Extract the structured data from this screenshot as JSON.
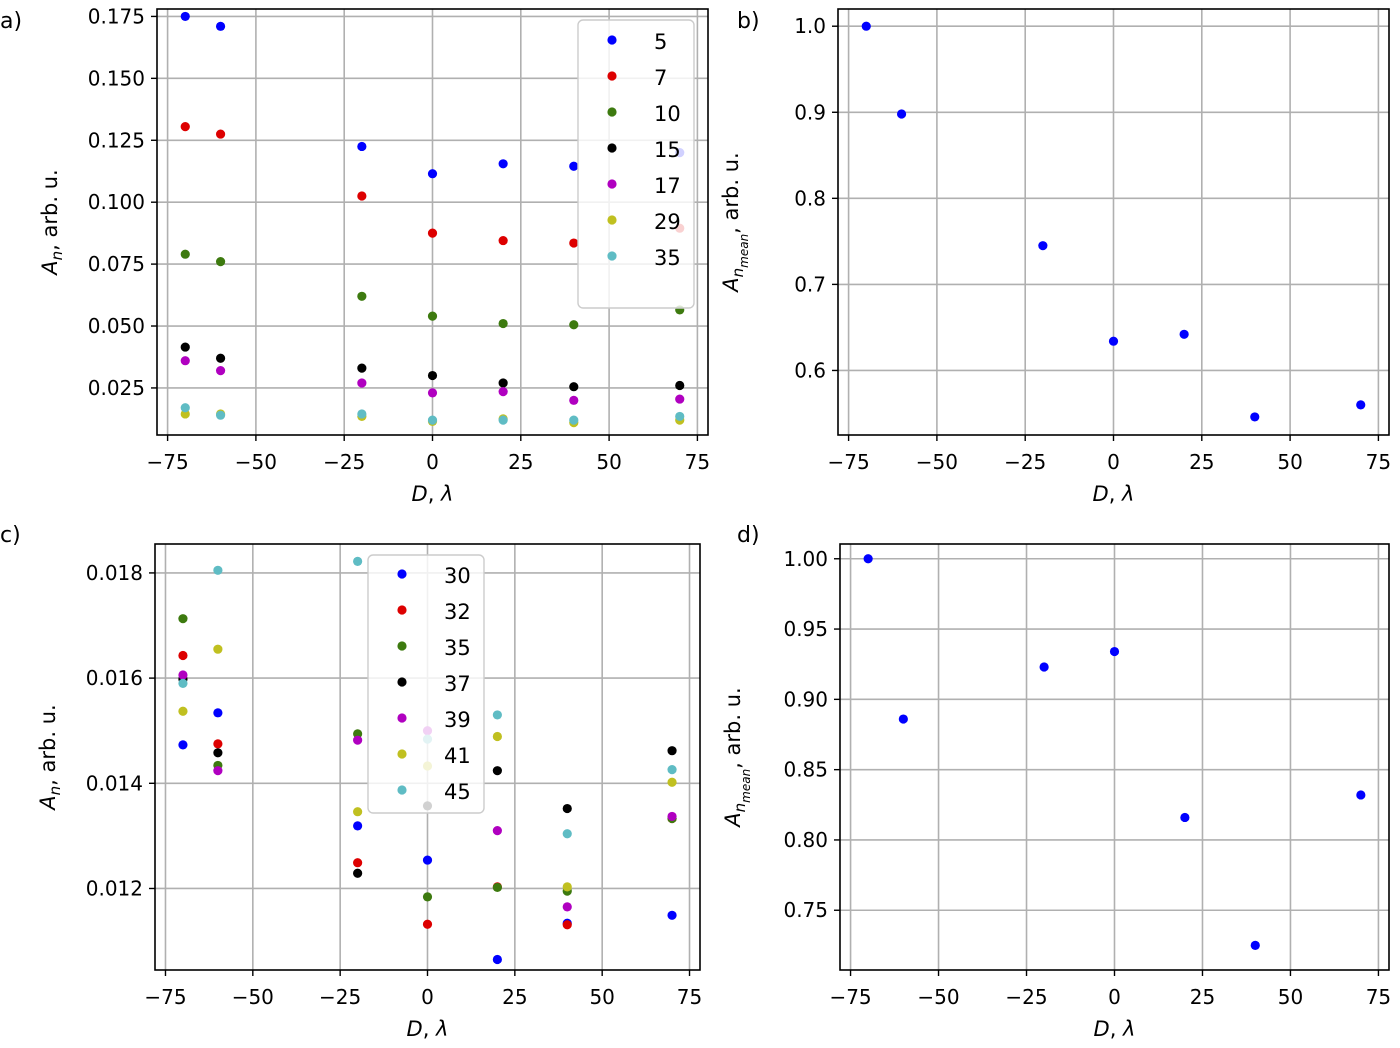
{
  "chart_data": [
    {
      "panel_label": "a)",
      "type": "scatter",
      "xlabel": "D, λ",
      "ylabel": "An, arb. u.",
      "ylabel_main": "A",
      "ylabel_sub": "n",
      "ylabel_rest": ", arb. u.",
      "xlim": [
        -78,
        78
      ],
      "ylim": [
        0.006,
        0.178
      ],
      "xticks": [
        -75,
        -50,
        -25,
        0,
        25,
        50,
        75
      ],
      "xtick_labels": [
        "−75",
        "−50",
        "−25",
        "0",
        "25",
        "50",
        "75"
      ],
      "yticks": [
        0.025,
        0.05,
        0.075,
        0.1,
        0.125,
        0.15,
        0.175
      ],
      "ytick_labels": [
        "0.025",
        "0.050",
        "0.075",
        "0.100",
        "0.125",
        "0.150",
        "0.175"
      ],
      "grid": true,
      "legend_position": "top-right",
      "x": [
        -70,
        -60,
        -20,
        0,
        20,
        40,
        70
      ],
      "series": [
        {
          "name": "5",
          "color": "#0000ff",
          "values": [
            0.175,
            0.171,
            0.1225,
            0.1115,
            0.1155,
            0.1145,
            0.12
          ]
        },
        {
          "name": "7",
          "color": "#dd0000",
          "values": [
            0.1305,
            0.1275,
            0.1025,
            0.0875,
            0.0845,
            0.0835,
            0.0895
          ]
        },
        {
          "name": "10",
          "color": "#3d7a0f",
          "values": [
            0.079,
            0.076,
            0.062,
            0.054,
            0.051,
            0.0505,
            0.0565
          ]
        },
        {
          "name": "15",
          "color": "#000000",
          "values": [
            0.0415,
            0.037,
            0.033,
            0.03,
            0.027,
            0.0255,
            0.026
          ]
        },
        {
          "name": "17",
          "color": "#b000c0",
          "values": [
            0.036,
            0.032,
            0.027,
            0.023,
            0.0235,
            0.02,
            0.0205
          ]
        },
        {
          "name": "29",
          "color": "#c0c020",
          "values": [
            0.0145,
            0.0145,
            0.0135,
            0.0115,
            0.0125,
            0.011,
            0.012
          ]
        },
        {
          "name": "35",
          "color": "#5fbcc4",
          "values": [
            0.017,
            0.014,
            0.0145,
            0.012,
            0.012,
            0.012,
            0.0135
          ]
        }
      ]
    },
    {
      "panel_label": "b)",
      "type": "scatter",
      "xlabel": "D, λ",
      "ylabel_main": "A",
      "ylabel_sub": "n",
      "ylabel_subsub": "mean",
      "ylabel_rest": ", arb. u.",
      "xlim": [
        -78,
        78
      ],
      "ylim": [
        0.525,
        1.02
      ],
      "xticks": [
        -75,
        -50,
        -25,
        0,
        25,
        50,
        75
      ],
      "xtick_labels": [
        "−75",
        "−50",
        "−25",
        "0",
        "25",
        "50",
        "75"
      ],
      "yticks": [
        0.6,
        0.7,
        0.8,
        0.9,
        1.0
      ],
      "ytick_labels": [
        "0.6",
        "0.7",
        "0.8",
        "0.9",
        "1.0"
      ],
      "grid": true,
      "x": [
        -70,
        -60,
        -20,
        0,
        20,
        40,
        70
      ],
      "series": [
        {
          "color": "#0000ff",
          "values": [
            1.0,
            0.898,
            0.745,
            0.634,
            0.642,
            0.546,
            0.56
          ]
        }
      ]
    },
    {
      "panel_label": "c)",
      "type": "scatter",
      "xlabel": "D, λ",
      "ylabel_main": "A",
      "ylabel_sub": "n",
      "ylabel_rest": ", arb. u.",
      "xlim": [
        -78,
        78
      ],
      "ylim": [
        0.01045,
        0.01855
      ],
      "xticks": [
        -75,
        -50,
        -25,
        0,
        25,
        50,
        75
      ],
      "xtick_labels": [
        "−75",
        "−50",
        "−25",
        "0",
        "25",
        "50",
        "75"
      ],
      "yticks": [
        0.012,
        0.014,
        0.016,
        0.018
      ],
      "ytick_labels": [
        "0.012",
        "0.014",
        "0.016",
        "0.018"
      ],
      "grid": true,
      "legend_position": "top-center",
      "x": [
        -70,
        -60,
        -20,
        0,
        20,
        40,
        70
      ],
      "series": [
        {
          "name": "30",
          "color": "#0000ff",
          "values": [
            0.01473,
            0.01534,
            0.01319,
            0.01254,
            0.01065,
            0.01134,
            0.01149
          ]
        },
        {
          "name": "32",
          "color": "#dd0000",
          "values": [
            0.01643,
            0.01475,
            0.01249,
            0.01132,
            0.01203,
            0.01131,
            0.01333
          ]
        },
        {
          "name": "35",
          "color": "#3d7a0f",
          "values": [
            0.01713,
            0.01434,
            0.01494,
            0.01184,
            0.01202,
            0.01195,
            0.01333
          ]
        },
        {
          "name": "37",
          "color": "#000000",
          "values": [
            0.01598,
            0.01458,
            0.01229,
            0.01357,
            0.01424,
            0.01352,
            0.01462
          ]
        },
        {
          "name": "39",
          "color": "#b000c0",
          "values": [
            0.01606,
            0.01424,
            0.01482,
            0.015,
            0.0131,
            0.01165,
            0.01337
          ]
        },
        {
          "name": "41",
          "color": "#c0c020",
          "values": [
            0.01537,
            0.01655,
            0.01346,
            0.01433,
            0.01489,
            0.01203,
            0.01402
          ]
        },
        {
          "name": "45",
          "color": "#5fbcc4",
          "values": [
            0.0159,
            0.01805,
            0.01822,
            0.01484,
            0.0153,
            0.01304,
            0.01426
          ]
        }
      ]
    },
    {
      "panel_label": "d)",
      "type": "scatter",
      "xlabel": "D, λ",
      "ylabel_main": "A",
      "ylabel_sub": "n",
      "ylabel_subsub": "mean",
      "ylabel_rest": ", arb. u.",
      "xlim": [
        -78,
        78
      ],
      "ylim": [
        0.7075,
        1.0105
      ],
      "xticks": [
        -75,
        -50,
        -25,
        0,
        25,
        50,
        75
      ],
      "xtick_labels": [
        "−75",
        "−50",
        "−25",
        "0",
        "25",
        "50",
        "75"
      ],
      "yticks": [
        0.75,
        0.8,
        0.85,
        0.9,
        0.95,
        1.0
      ],
      "ytick_labels": [
        "0.75",
        "0.80",
        "0.85",
        "0.90",
        "0.95",
        "1.00"
      ],
      "grid": true,
      "x": [
        -70,
        -60,
        -20,
        0,
        20,
        40,
        70
      ],
      "series": [
        {
          "color": "#0000ff",
          "values": [
            1.0,
            0.886,
            0.923,
            0.934,
            0.816,
            0.725,
            0.832
          ]
        }
      ]
    }
  ]
}
